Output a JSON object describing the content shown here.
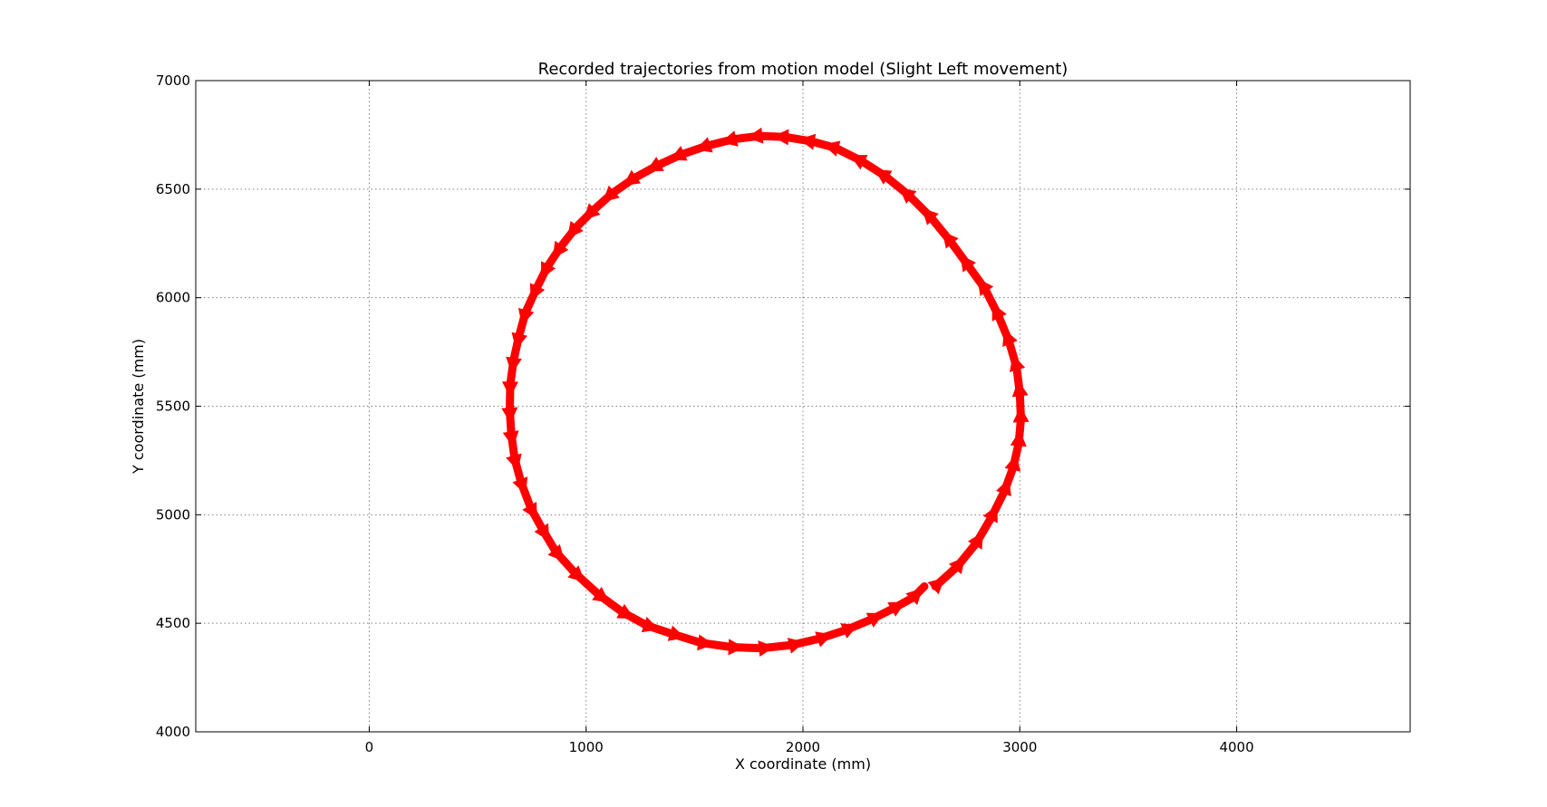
{
  "chart_data": {
    "type": "line",
    "title": "Recorded trajectories from motion model (Slight Left movement)",
    "xlabel": "X coordinate (mm)",
    "ylabel": "Y coordinate (mm)",
    "xlim": [
      -800,
      4800
    ],
    "ylim": [
      4000,
      7000
    ],
    "x_ticks": [
      0,
      1000,
      2000,
      3000,
      4000
    ],
    "y_ticks": [
      4000,
      4500,
      5000,
      5500,
      6000,
      6500,
      7000
    ],
    "x_tick_labels": [
      "0",
      "1000",
      "2000",
      "3000",
      "4000"
    ],
    "y_tick_labels": [
      "4000",
      "4500",
      "5000",
      "5500",
      "6000",
      "6500",
      "7000"
    ],
    "grid": true,
    "marker": "arrow",
    "colors": {
      "series": "#ff0000",
      "grid": "#808080",
      "axes": "#000000"
    },
    "series": [
      {
        "name": "",
        "x": [
          2610,
          2710,
          2800,
          2870,
          2930,
          2970,
          2995,
          3005,
          3000,
          2985,
          2950,
          2900,
          2840,
          2760,
          2680,
          2590,
          2490,
          2380,
          2270,
          2150,
          2040,
          1920,
          1800,
          1680,
          1560,
          1440,
          1330,
          1220,
          1120,
          1030,
          950,
          880,
          820,
          770,
          720,
          690,
          665,
          650,
          648,
          655,
          670,
          700,
          745,
          800,
          860,
          950,
          1060,
          1170,
          1280,
          1400,
          1530,
          1670,
          1810,
          1950,
          2080,
          2200,
          2320,
          2420,
          2510,
          2560
        ],
        "y": [
          4670,
          4760,
          4870,
          4990,
          5110,
          5220,
          5330,
          5440,
          5560,
          5680,
          5800,
          5920,
          6040,
          6150,
          6260,
          6370,
          6470,
          6560,
          6630,
          6690,
          6720,
          6740,
          6745,
          6730,
          6700,
          6660,
          6610,
          6550,
          6480,
          6400,
          6320,
          6230,
          6140,
          6040,
          5930,
          5820,
          5710,
          5600,
          5480,
          5370,
          5260,
          5150,
          5030,
          4930,
          4830,
          4730,
          4630,
          4550,
          4490,
          4450,
          4410,
          4390,
          4385,
          4400,
          4430,
          4470,
          4520,
          4570,
          4620,
          4670
        ]
      }
    ]
  }
}
